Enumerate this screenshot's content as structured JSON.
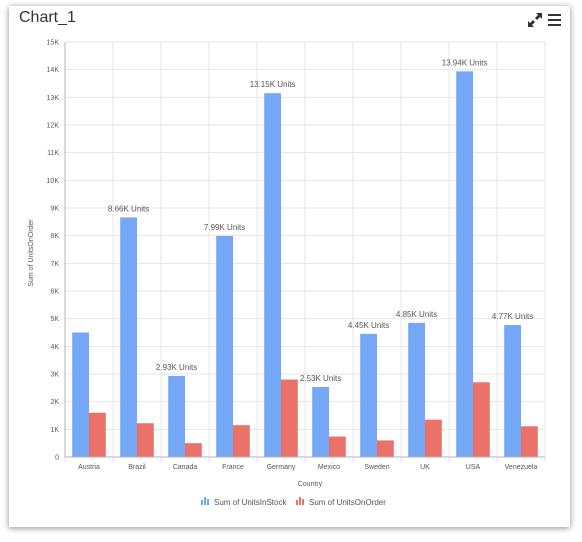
{
  "header": {
    "title": "Chart_1",
    "expand_icon": "expand-arrows-icon",
    "menu_icon": "hamburger-menu-icon"
  },
  "colors": {
    "series1": "#74a7f6",
    "series2": "#ea7268",
    "grid": "#e6e6e6",
    "axis": "#b5b5b5"
  },
  "chart_data": {
    "type": "bar",
    "xlabel": "Country",
    "ylabel": "Sum of UnitsOnOrder",
    "ylim": [
      0,
      15000
    ],
    "yticks": [
      0,
      1000,
      2000,
      3000,
      4000,
      5000,
      6000,
      7000,
      8000,
      9000,
      10000,
      11000,
      12000,
      13000,
      14000,
      15000
    ],
    "ytick_labels": [
      "0",
      "1K",
      "2K",
      "3K",
      "4K",
      "5K",
      "6K",
      "7K",
      "8K",
      "9K",
      "10K",
      "11K",
      "12K",
      "13K",
      "14K",
      "15K"
    ],
    "grid": true,
    "legend_position": "bottom",
    "categories": [
      "Austria",
      "Brazil",
      "Canada",
      "France",
      "Germany",
      "Mexico",
      "Sweden",
      "UK",
      "USA",
      "Venezuela"
    ],
    "series": [
      {
        "name": "Sum of UnitsInStock",
        "values": [
          4500,
          8660,
          2930,
          7990,
          13150,
          2530,
          4450,
          4850,
          13940,
          4770
        ],
        "labels": [
          "",
          "8.66K Units",
          "2.93K Units",
          "7.99K Units",
          "13.15K Units",
          "2.53K Units",
          "4.45K Units",
          "4.85K Units",
          "13.94K Units",
          "4.77K Units"
        ]
      },
      {
        "name": "Sum of UnitsOnOrder",
        "values": [
          1600,
          1220,
          500,
          1150,
          2800,
          740,
          600,
          1350,
          2700,
          1110
        ],
        "labels": [
          "",
          "",
          "",
          "",
          "",
          "",
          "",
          "",
          "",
          ""
        ]
      }
    ]
  }
}
